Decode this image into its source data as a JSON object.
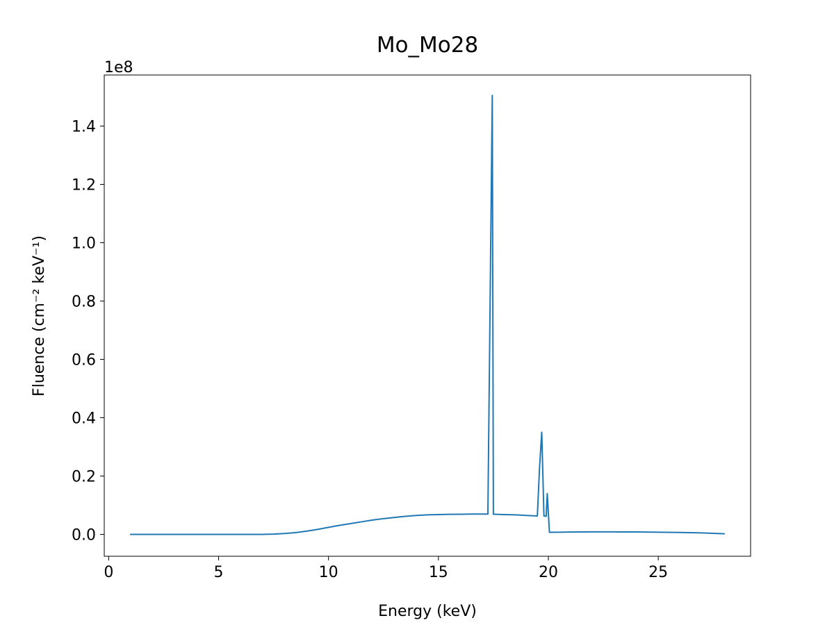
{
  "chart_data": {
    "type": "line",
    "title": "Mo_Mo28",
    "xlabel": "Energy (keV)",
    "ylabel": "Fluence (cm⁻² keV⁻¹)",
    "y_offset_label": "1e8",
    "xlim": [
      -0.2,
      29.2
    ],
    "ylim": [
      -0.075,
      1.575
    ],
    "y_scale_factor": 100000000,
    "xticks": [
      0,
      5,
      10,
      15,
      20,
      25
    ],
    "xtick_labels": [
      "0",
      "5",
      "10",
      "15",
      "20",
      "25"
    ],
    "yticks": [
      0.0,
      0.2,
      0.4,
      0.6,
      0.8,
      1.0,
      1.2,
      1.4
    ],
    "ytick_labels": [
      "0.0",
      "0.2",
      "0.4",
      "0.6",
      "0.8",
      "1.0",
      "1.2",
      "1.4"
    ],
    "grid": false,
    "series": [
      {
        "color": "#1f77b4",
        "x": [
          1.0,
          2.0,
          3.0,
          4.0,
          5.0,
          6.0,
          7.0,
          7.5,
          8.0,
          8.5,
          9.0,
          9.5,
          10.0,
          10.5,
          11.0,
          11.5,
          12.0,
          12.5,
          13.0,
          13.5,
          14.0,
          14.5,
          15.0,
          15.5,
          16.0,
          16.5,
          17.0,
          17.25,
          17.45,
          17.5,
          17.55,
          17.75,
          18.0,
          18.5,
          19.0,
          19.5,
          19.6,
          19.7,
          19.8,
          19.9,
          19.95,
          20.05,
          20.5,
          21.0,
          22.0,
          23.0,
          24.0,
          25.0,
          26.0,
          27.0,
          28.0
        ],
        "y": [
          0.0,
          0.0,
          0.0,
          0.0,
          0.0,
          0.0,
          0.0,
          0.001,
          0.003,
          0.006,
          0.011,
          0.017,
          0.024,
          0.031,
          0.037,
          0.043,
          0.049,
          0.054,
          0.058,
          0.062,
          0.065,
          0.067,
          0.068,
          0.0688,
          0.0692,
          0.0695,
          0.0695,
          0.0695,
          1.505,
          0.069,
          0.069,
          0.0685,
          0.068,
          0.067,
          0.065,
          0.063,
          0.23,
          0.35,
          0.063,
          0.062,
          0.14,
          0.007,
          0.0075,
          0.008,
          0.0085,
          0.0085,
          0.0082,
          0.0075,
          0.0065,
          0.005,
          0.002
        ]
      }
    ]
  }
}
